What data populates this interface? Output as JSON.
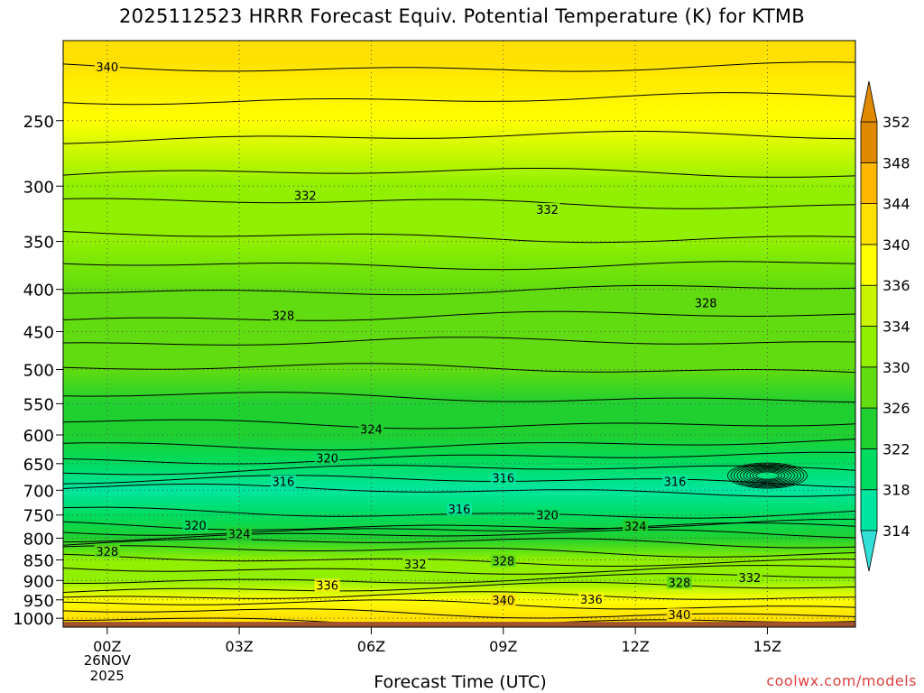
{
  "title": "2025112523 HRRR Forecast Equiv. Potential Temperature (K) for KTMB",
  "credit": "coolwx.com/models",
  "chart_data": {
    "type": "heatmap",
    "title": "2025112523 HRRR Forecast Equiv. Potential Temperature (K) for KTMB",
    "xlabel": "Forecast Time (UTC)",
    "ylabel": "",
    "x_ticks": [
      "00Z",
      "03Z",
      "06Z",
      "09Z",
      "12Z",
      "15Z"
    ],
    "x_tick_hours": [
      0,
      3,
      6,
      9,
      12,
      15
    ],
    "x_date_label": [
      "26NOV",
      "2025"
    ],
    "xlim_hours": [
      -1,
      17
    ],
    "y_ticks": [
      250,
      300,
      350,
      400,
      450,
      500,
      550,
      600,
      650,
      700,
      750,
      800,
      850,
      900,
      950,
      1000
    ],
    "ylim_hPa": [
      1025,
      200
    ],
    "y_scale": "log-pressure",
    "grid": "dotted",
    "colorbar": {
      "levels": [
        314,
        318,
        322,
        326,
        330,
        334,
        336,
        340,
        344,
        348,
        352
      ],
      "colors": [
        "#33e0d8",
        "#00e6a0",
        "#00dc60",
        "#20d030",
        "#60dc10",
        "#90f000",
        "#c8f400",
        "#ffff00",
        "#ffe000",
        "#ffb800",
        "#e08a00"
      ],
      "extend": "both"
    },
    "profile_by_level_hPa": [
      {
        "p": 210,
        "thetae": 341
      },
      {
        "p": 250,
        "thetae": 337
      },
      {
        "p": 300,
        "thetae": 332
      },
      {
        "p": 350,
        "thetae": 331
      },
      {
        "p": 400,
        "thetae": 329
      },
      {
        "p": 450,
        "thetae": 327
      },
      {
        "p": 500,
        "thetae": 326
      },
      {
        "p": 550,
        "thetae": 325
      },
      {
        "p": 600,
        "thetae": 323
      },
      {
        "p": 650,
        "thetae": 320
      },
      {
        "p": 700,
        "thetae": 316
      },
      {
        "p": 750,
        "thetae": 318
      },
      {
        "p": 800,
        "thetae": 324
      },
      {
        "p": 850,
        "thetae": 330
      },
      {
        "p": 900,
        "thetae": 333
      },
      {
        "p": 950,
        "thetae": 337
      },
      {
        "p": 1000,
        "thetae": 341
      }
    ],
    "contour_labels": [
      {
        "text": "340",
        "hour": 0,
        "p": 215
      },
      {
        "text": "332",
        "hour": 4.5,
        "p": 308
      },
      {
        "text": "332",
        "hour": 10,
        "p": 320
      },
      {
        "text": "328",
        "hour": 4,
        "p": 430
      },
      {
        "text": "328",
        "hour": 13.6,
        "p": 415
      },
      {
        "text": "324",
        "hour": 6,
        "p": 590
      },
      {
        "text": "320",
        "hour": 5,
        "p": 640
      },
      {
        "text": "316",
        "hour": 4,
        "p": 683
      },
      {
        "text": "316",
        "hour": 9,
        "p": 676
      },
      {
        "text": "316",
        "hour": 12.9,
        "p": 683
      },
      {
        "text": "316",
        "hour": 8,
        "p": 737
      },
      {
        "text": "320",
        "hour": 10,
        "p": 750
      },
      {
        "text": "320",
        "hour": 2,
        "p": 772
      },
      {
        "text": "324",
        "hour": 3,
        "p": 790
      },
      {
        "text": "324",
        "hour": 12,
        "p": 773
      },
      {
        "text": "328",
        "hour": 0,
        "p": 830
      },
      {
        "text": "328",
        "hour": 9,
        "p": 852
      },
      {
        "text": "332",
        "hour": 7,
        "p": 860
      },
      {
        "text": "336",
        "hour": 5,
        "p": 912
      },
      {
        "text": "328",
        "hour": 13,
        "p": 905
      },
      {
        "text": "332",
        "hour": 14.6,
        "p": 893
      },
      {
        "text": "336",
        "hour": 11,
        "p": 948
      },
      {
        "text": "340",
        "hour": 9,
        "p": 951
      },
      {
        "text": "340",
        "hour": 13,
        "p": 990
      }
    ]
  }
}
